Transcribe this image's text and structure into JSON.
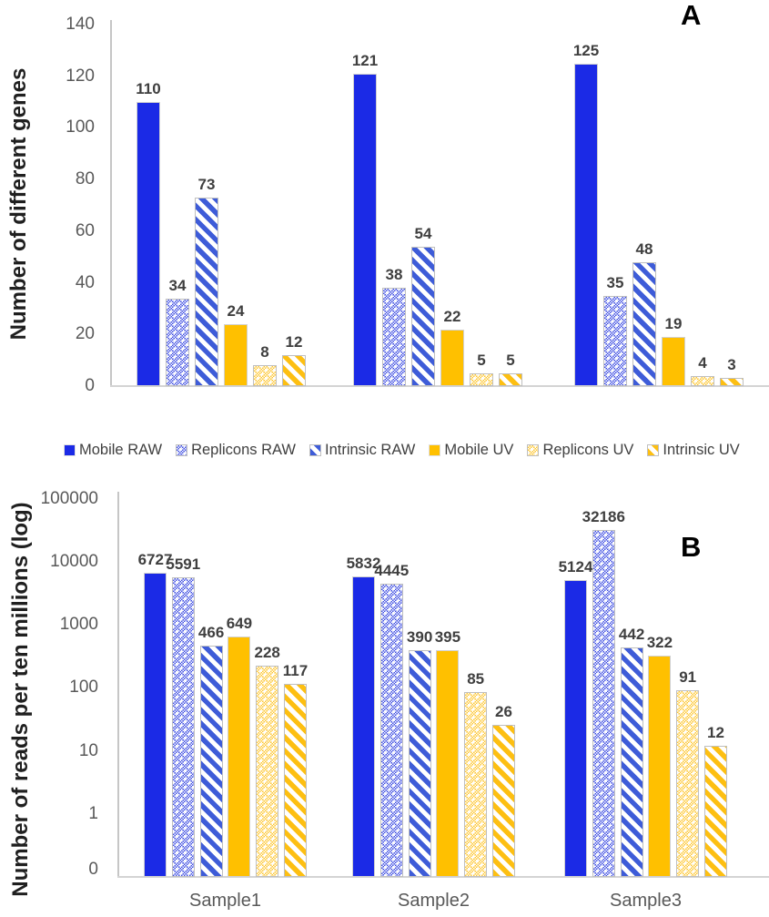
{
  "figure": {
    "panels": [
      {
        "panel_label": "A",
        "ylabel": "Number of different genes"
      },
      {
        "panel_label": "B",
        "ylabel": "Number of reads per ten millions (log)"
      }
    ]
  },
  "legend": {
    "items": [
      {
        "label": "Mobile RAW",
        "style": "solid-blue"
      },
      {
        "label": "Replicons RAW",
        "style": "dots-blue"
      },
      {
        "label": "Intrinsic RAW",
        "style": "stripes-blue"
      },
      {
        "label": "Mobile UV",
        "style": "solid-gold"
      },
      {
        "label": "Replicons UV",
        "style": "dots-gold"
      },
      {
        "label": "Intrinsic UV",
        "style": "stripes-gold"
      }
    ]
  },
  "chart_data": [
    {
      "type": "bar",
      "panel": "A",
      "title": "",
      "ylabel": "Number of different genes",
      "xlabel": "",
      "scale": "linear",
      "ylim": [
        0,
        140
      ],
      "yticks": [
        140,
        120,
        100,
        80,
        60,
        40,
        20,
        0
      ],
      "grid": false,
      "legend_position": "below-panel-A",
      "categories": [
        "Sample1",
        "Sample2",
        "Sample3"
      ],
      "show_category_labels": false,
      "series": [
        {
          "name": "Mobile RAW",
          "style": "solid-blue",
          "values": [
            110,
            121,
            125
          ]
        },
        {
          "name": "Replicons RAW",
          "style": "dots-blue",
          "values": [
            34,
            38,
            35
          ]
        },
        {
          "name": "Intrinsic RAW",
          "style": "stripes-blue",
          "values": [
            73,
            54,
            48
          ]
        },
        {
          "name": "Mobile UV",
          "style": "solid-gold",
          "values": [
            24,
            22,
            19
          ]
        },
        {
          "name": "Replicons UV",
          "style": "dots-gold",
          "values": [
            8,
            5,
            4
          ]
        },
        {
          "name": "Intrinsic UV",
          "style": "stripes-gold",
          "values": [
            12,
            5,
            3
          ]
        }
      ]
    },
    {
      "type": "bar",
      "panel": "B",
      "title": "",
      "ylabel": "Number of reads per ten millions (log)",
      "xlabel": "",
      "scale": "log",
      "ylim": [
        0,
        100000
      ],
      "yticks": [
        100000,
        10000,
        1000,
        100,
        10,
        1,
        0
      ],
      "grid": false,
      "categories": [
        "Sample1",
        "Sample2",
        "Sample3"
      ],
      "show_category_labels": true,
      "series": [
        {
          "name": "Mobile RAW",
          "style": "solid-blue",
          "values": [
            6727,
            5832,
            5124
          ]
        },
        {
          "name": "Replicons RAW",
          "style": "dots-blue",
          "values": [
            5591,
            4445,
            32186
          ]
        },
        {
          "name": "Intrinsic RAW",
          "style": "stripes-blue",
          "values": [
            466,
            390,
            442
          ]
        },
        {
          "name": "Mobile UV",
          "style": "solid-gold",
          "values": [
            649,
            395,
            322
          ]
        },
        {
          "name": "Replicons UV",
          "style": "dots-gold",
          "values": [
            228,
            85,
            91
          ]
        },
        {
          "name": "Intrinsic UV",
          "style": "stripes-gold",
          "values": [
            117,
            26,
            12
          ]
        }
      ]
    }
  ],
  "colors": {
    "solid_blue": "#1b2ae6",
    "checker_blue": "#3b4be2",
    "stripe_blue": "#3e5cd8",
    "solid_gold": "#ffc000",
    "checker_gold": "#fec62e",
    "stripe_gold": "#fdbf12",
    "tick_text": "#595959",
    "value_text": "#3f3f3f",
    "axis_line": "#c6c6c6"
  }
}
